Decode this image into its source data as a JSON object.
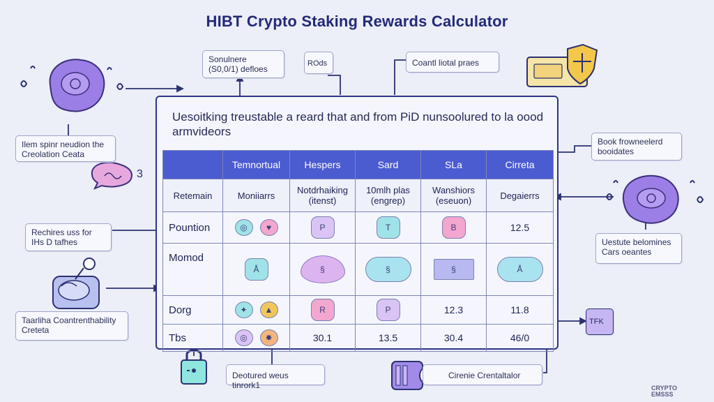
{
  "title": "HIBT Crypto Staking Rewards Calculator",
  "panel": {
    "text": "Uesoitking treustable a reard that and from PiD nunsoolured to la oood armvideors"
  },
  "table": {
    "headers": [
      "",
      "Temnortual",
      "Hespers",
      "Sard",
      "SLa",
      "Cirreta"
    ],
    "subheaders": [
      "Retemain",
      "Moniiarrs",
      "Notdrhaiking (itenst)",
      "10mlh plas (engrep)",
      "Wanshiors (eseuon)",
      "Degaierrs"
    ],
    "rows": [
      {
        "label": "Pountion",
        "cells": [
          {
            "icons": [
              {
                "glyph": "◎",
                "color": "teal"
              },
              {
                "glyph": "♥",
                "color": "pink"
              }
            ]
          },
          {
            "icons": [
              {
                "glyph": "P",
                "color": "lilac",
                "shape": "wide"
              }
            ]
          },
          {
            "icons": [
              {
                "glyph": "T",
                "color": "teal",
                "shape": "wide"
              }
            ]
          },
          {
            "icons": [
              {
                "glyph": "B",
                "color": "pink",
                "shape": "wide"
              }
            ]
          },
          {
            "text": "12.5"
          }
        ]
      },
      {
        "label": "Momod",
        "cells": [
          {
            "icons": [
              {
                "glyph": "Å",
                "color": "teal",
                "shape": "wide"
              }
            ]
          },
          {
            "icons": [
              {
                "glyph": "§",
                "color": "lilac",
                "shape": "heart"
              }
            ]
          },
          {
            "icons": [
              {
                "glyph": "§",
                "color": "teal",
                "shape": "bubble"
              }
            ]
          },
          {
            "icons": [
              {
                "glyph": "§",
                "color": "lilac",
                "shape": "rect"
              }
            ]
          },
          {
            "icons": [
              {
                "glyph": "Å",
                "color": "teal",
                "shape": "bubble"
              }
            ]
          }
        ]
      },
      {
        "label": "Dorg",
        "cells": [
          {
            "icons": [
              {
                "glyph": "✦",
                "color": "teal"
              },
              {
                "glyph": "▲",
                "color": "gold"
              }
            ]
          },
          {
            "icons": [
              {
                "glyph": "R",
                "color": "pink",
                "shape": "wide"
              }
            ]
          },
          {
            "icons": [
              {
                "glyph": "P",
                "color": "lilac",
                "shape": "wide"
              }
            ]
          },
          {
            "text": "12.3"
          },
          {
            "text": "11.8"
          }
        ]
      },
      {
        "label": "Tbs",
        "cells": [
          {
            "icons": [
              {
                "glyph": "◎",
                "color": "lilac"
              },
              {
                "glyph": "✸",
                "color": "peach"
              }
            ]
          },
          {
            "text": "30.1"
          },
          {
            "text": "13.5"
          },
          {
            "text": "30.4"
          },
          {
            "text": "46/0"
          }
        ]
      }
    ]
  },
  "callouts": {
    "top_left": "Sonulnere (S0,0/1) defloes",
    "top_small": "ROds",
    "top_right": "Coantl liotal praes",
    "left_upper": "Ilem spinr neudion the Creolation Ceata",
    "left_middle": "Rechires uss for IHs D tafhes",
    "left_lower": "Taarliha Coantrenthability Creteta",
    "right_upper": "Book frowneelerd booidates",
    "right_middle": "Uestute belomines Cars oeantes",
    "right_small": "TFK",
    "bottom_center": "Deotured weus tinrork1",
    "bottom_right": "Cirenie Crentaltalor"
  },
  "corner_mark": "CRYPTO\nEMSSS"
}
